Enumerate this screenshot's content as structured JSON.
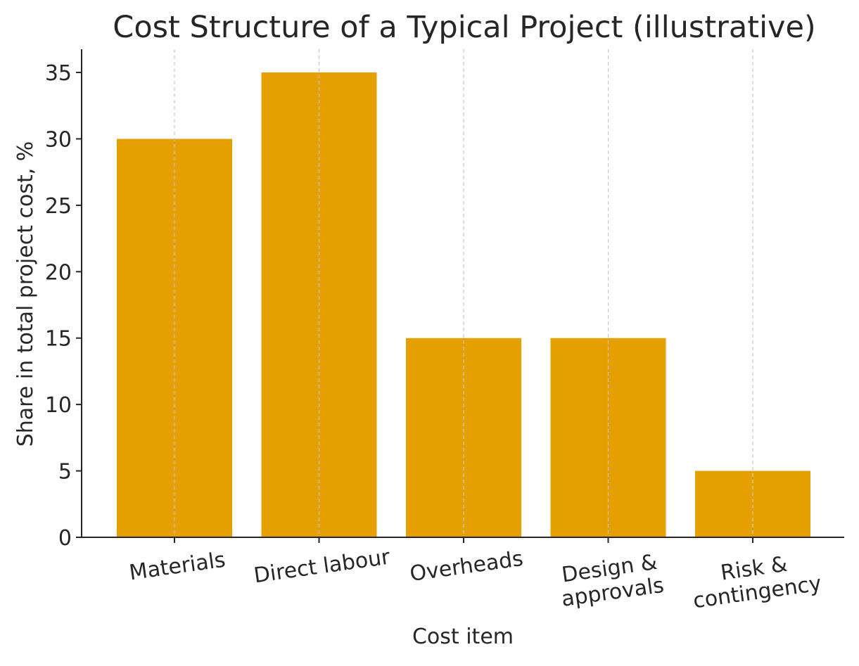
{
  "chart_data": {
    "type": "bar",
    "title": "Cost Structure of a Typical Project (illustrative)",
    "xlabel": "Cost item",
    "ylabel": "Share in total project cost, %",
    "categories": [
      [
        "Materials"
      ],
      [
        "Direct labour"
      ],
      [
        "Overheads"
      ],
      [
        "Design &",
        "approvals"
      ],
      [
        "Risk &",
        "contingency"
      ]
    ],
    "values": [
      30,
      35,
      15,
      15,
      5
    ],
    "ylim": [
      0,
      36.75
    ],
    "yticks": [
      "0",
      "5",
      "10",
      "15",
      "20",
      "25",
      "30",
      "35"
    ],
    "bar_color": "#E69F00",
    "grid": "vertical dashed",
    "legend": "none"
  }
}
